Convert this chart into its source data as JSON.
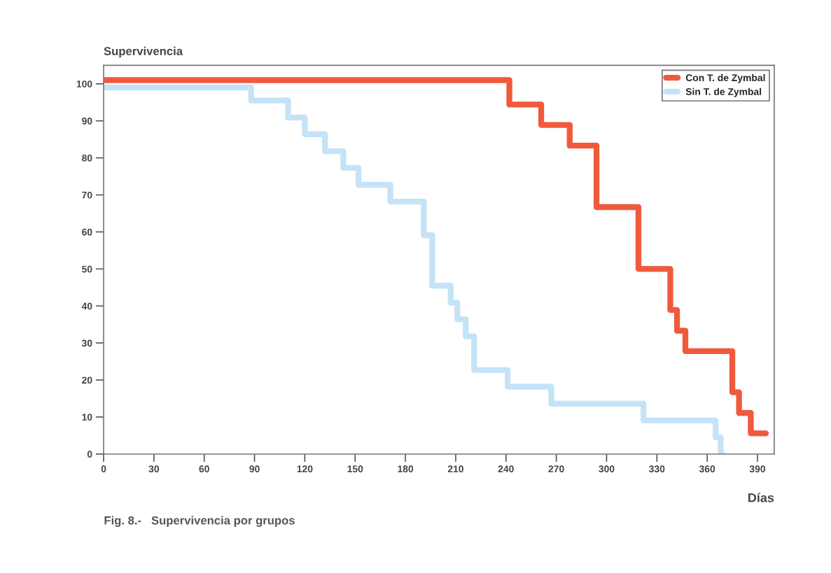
{
  "chart_data": {
    "type": "step",
    "ylabel": "Supervivencia",
    "xlabel": "Días",
    "annotations": [
      "Fig. 8.-   Supervivencia por grupos"
    ],
    "series": [
      {
        "name": "Con T. de Zymbal",
        "color": "#f05a3c",
        "x": [
          0,
          242,
          261,
          278,
          294,
          319,
          338,
          342,
          347,
          375,
          379,
          386,
          395
        ],
        "values": [
          101,
          94.4,
          88.9,
          83.3,
          66.7,
          50,
          38.9,
          33.3,
          27.8,
          16.7,
          11.1,
          5.6,
          5.6
        ]
      },
      {
        "name": "Sin T. de Zymbal",
        "color": "#c5e3f7",
        "x": [
          0,
          88,
          110,
          120,
          132,
          143,
          152,
          171,
          191,
          196,
          207,
          211,
          216,
          221,
          241,
          267,
          322,
          365,
          368,
          369
        ],
        "values": [
          99,
          95.5,
          90.9,
          86.4,
          81.8,
          77.3,
          72.7,
          68.2,
          59.1,
          45.5,
          40.9,
          36.4,
          31.8,
          22.7,
          18.2,
          13.6,
          9.1,
          4.5,
          0,
          0
        ]
      }
    ],
    "xlim": [
      0,
      400
    ],
    "xticks": [
      0,
      30,
      60,
      90,
      120,
      150,
      180,
      210,
      240,
      270,
      300,
      330,
      360,
      390
    ],
    "ylim": [
      0,
      105
    ],
    "yticks": [
      0,
      10,
      20,
      30,
      40,
      50,
      60,
      70,
      80,
      90,
      100
    ],
    "legend": "top right",
    "grid": false,
    "line_style": "solid"
  }
}
